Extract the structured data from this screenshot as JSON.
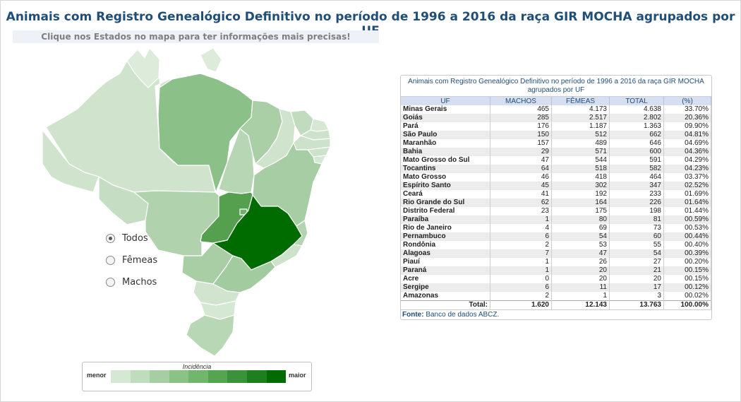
{
  "title": "Animais com Registro Genealógico Definitivo no período de 1996 a 2016 da raça GIR MOCHA agrupados por UF",
  "hint": "Clique nos Estados no mapa para ter informações mais precisas!",
  "radios": [
    {
      "label": "Todos",
      "checked": true
    },
    {
      "label": "Fêmeas",
      "checked": false
    },
    {
      "label": "Machos",
      "checked": false
    }
  ],
  "legend": {
    "title": "Incidência",
    "min": "menor",
    "max": "maior",
    "colors": [
      "#d5e8d4",
      "#bfdcbd",
      "#a5cfa2",
      "#8bc285",
      "#72b56c",
      "#55a450",
      "#3a923a",
      "#1e7f1e",
      "#006c00"
    ]
  },
  "table": {
    "caption": "Animais com Registro Genealógico Definitivo no período de 1996 a 2016 da raça GIR MOCHA agrupados por UF",
    "headers": [
      "UF",
      "MACHOS",
      "FÊMEAS",
      "TOTAL",
      "(%)"
    ],
    "rows": [
      [
        "Minas Gerais",
        "465",
        "4.173",
        "4.638",
        "33.70%"
      ],
      [
        "Goiás",
        "285",
        "2.517",
        "2.802",
        "20.36%"
      ],
      [
        "Pará",
        "176",
        "1.187",
        "1.363",
        "09.90%"
      ],
      [
        "São Paulo",
        "150",
        "512",
        "662",
        "04.81%"
      ],
      [
        "Maranhão",
        "157",
        "489",
        "646",
        "04.69%"
      ],
      [
        "Bahia",
        "29",
        "571",
        "600",
        "04.36%"
      ],
      [
        "Mato Grosso do Sul",
        "47",
        "544",
        "591",
        "04.29%"
      ],
      [
        "Tocantins",
        "64",
        "518",
        "582",
        "04.23%"
      ],
      [
        "Mato Grosso",
        "46",
        "418",
        "464",
        "03.37%"
      ],
      [
        "Espírito Santo",
        "45",
        "302",
        "347",
        "02.52%"
      ],
      [
        "Ceará",
        "41",
        "192",
        "233",
        "01.69%"
      ],
      [
        "Rio Grande do Sul",
        "62",
        "164",
        "226",
        "01.64%"
      ],
      [
        "Distrito Federal",
        "23",
        "175",
        "198",
        "01.44%"
      ],
      [
        "Paraíba",
        "1",
        "80",
        "81",
        "00.59%"
      ],
      [
        "Rio de Janeiro",
        "4",
        "69",
        "73",
        "00.53%"
      ],
      [
        "Pernambuco",
        "6",
        "54",
        "60",
        "00.44%"
      ],
      [
        "Rondônia",
        "2",
        "53",
        "55",
        "00.40%"
      ],
      [
        "Alagoas",
        "7",
        "47",
        "54",
        "00.39%"
      ],
      [
        "Piauí",
        "1",
        "26",
        "27",
        "00.20%"
      ],
      [
        "Paraná",
        "1",
        "20",
        "21",
        "00.15%"
      ],
      [
        "Acre",
        "0",
        "20",
        "20",
        "00.15%"
      ],
      [
        "Sergipe",
        "6",
        "11",
        "17",
        "00.12%"
      ],
      [
        "Amazonas",
        "2",
        "1",
        "3",
        "00.02%"
      ]
    ],
    "total": [
      "Total:",
      "1.620",
      "12.143",
      "13.763",
      "100.00%"
    ],
    "source_label": "Fonte:",
    "source_text": "Banco de dados ABCZ."
  },
  "map_colors": {
    "AM": "#cfe3cd",
    "RR": "#dcebda",
    "AP": "#dcebda",
    "PA": "#8cc089",
    "AC": "#cfe3cd",
    "RO": "#c5dec3",
    "MT": "#b0d2ad",
    "TO": "#b7d6b4",
    "MA": "#aacfa7",
    "PI": "#cfe3cd",
    "CE": "#c1dbbf",
    "RN": "#d5e8d4",
    "PB": "#cde2cb",
    "PE": "#cde2cb",
    "AL": "#cde2cb",
    "SE": "#d5e8d4",
    "BA": "#a7cda4",
    "GO": "#55a04f",
    "DF": "#6fb06a",
    "MS": "#a9cea6",
    "MG": "#006c00",
    "ES": "#b4d4b1",
    "RJ": "#cde2cb",
    "SP": "#a3cba0",
    "PR": "#d0e4ce",
    "SC": "#d5e8d4",
    "RS": "#b8d7b5"
  }
}
